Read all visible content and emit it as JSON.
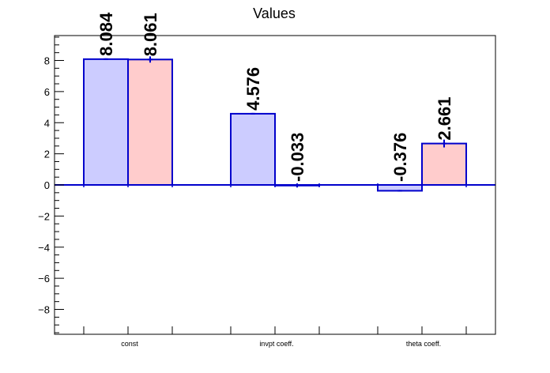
{
  "chart_data": {
    "type": "bar",
    "title": "Values",
    "categories": [
      "const",
      "invpt coeff.",
      "theta coeff."
    ],
    "series": [
      {
        "values": [
          8.084,
          4.576,
          -0.376
        ],
        "errors": [
          0.0,
          0.0,
          0.0
        ],
        "labels": [
          "8.084",
          "4.576",
          "-0.376"
        ],
        "fill": "#ccccff",
        "stroke": "#0000cc"
      },
      {
        "values": [
          8.061,
          -0.033,
          2.661
        ],
        "errors": [
          0.15,
          0.08,
          0.2
        ],
        "labels": [
          "8.061",
          "-0.033",
          "2.661"
        ],
        "fill": "#ffcccc",
        "stroke": "#0000cc"
      }
    ],
    "ylim": [
      -9.6,
      9.6
    ],
    "yticks": [
      -8,
      -6,
      -4,
      -2,
      0,
      2,
      4,
      6,
      8
    ],
    "ytick_labels": [
      "−8",
      "−6",
      "−4",
      "−2",
      "0",
      "2",
      "4",
      "6",
      "8"
    ],
    "grid": false,
    "baseline_color": "#0000cc"
  }
}
